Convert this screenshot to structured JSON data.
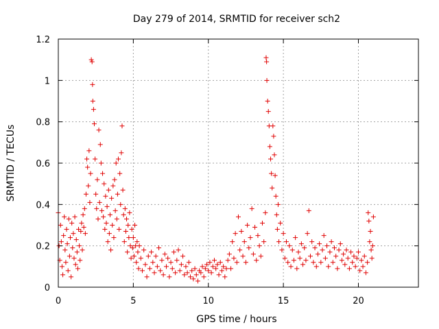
{
  "chart_data": {
    "type": "scatter",
    "title": "Day 279 of 2014, SRMTID for receiver sch2",
    "xlabel": "GPS time / hours",
    "ylabel": "SRMTID / TECUs",
    "xlim": [
      0,
      24
    ],
    "ylim": [
      0,
      1.2
    ],
    "x_ticks": [
      0,
      5,
      10,
      15,
      20
    ],
    "y_ticks": [
      0,
      0.2,
      0.4,
      0.6,
      0.8,
      1,
      1.2
    ],
    "x_tick_labels": [
      "0",
      "5",
      "10",
      "15",
      "20"
    ],
    "y_tick_labels": [
      "0",
      "0.2",
      "0.4",
      "0.6",
      "0.8",
      "1",
      "1.2"
    ],
    "grid": true,
    "marker": "+",
    "color": "#e00000",
    "series": [
      {
        "name": "SRMTID",
        "points": [
          [
            0.0,
            0.36
          ],
          [
            0.05,
            0.2
          ],
          [
            0.1,
            0.13
          ],
          [
            0.15,
            0.3
          ],
          [
            0.2,
            0.22
          ],
          [
            0.25,
            0.1
          ],
          [
            0.3,
            0.06
          ],
          [
            0.35,
            0.25
          ],
          [
            0.4,
            0.34
          ],
          [
            0.45,
            0.18
          ],
          [
            0.5,
            0.12
          ],
          [
            0.55,
            0.28
          ],
          [
            0.6,
            0.21
          ],
          [
            0.65,
            0.08
          ],
          [
            0.7,
            0.33
          ],
          [
            0.75,
            0.15
          ],
          [
            0.8,
            0.24
          ],
          [
            0.85,
            0.05
          ],
          [
            0.9,
            0.31
          ],
          [
            0.95,
            0.19
          ],
          [
            1.0,
            0.26
          ],
          [
            1.05,
            0.14
          ],
          [
            1.1,
            0.34
          ],
          [
            1.15,
            0.11
          ],
          [
            1.2,
            0.23
          ],
          [
            1.25,
            0.17
          ],
          [
            1.3,
            0.09
          ],
          [
            1.35,
            0.28
          ],
          [
            1.4,
            0.2
          ],
          [
            1.45,
            0.13
          ],
          [
            1.5,
            0.27
          ],
          [
            1.55,
            0.31
          ],
          [
            1.6,
            0.18
          ],
          [
            1.65,
            0.35
          ],
          [
            1.7,
            0.29
          ],
          [
            1.75,
            0.38
          ],
          [
            1.8,
            0.26
          ],
          [
            1.85,
            0.45
          ],
          [
            1.9,
            0.62
          ],
          [
            1.95,
            0.58
          ],
          [
            2.0,
            0.49
          ],
          [
            2.05,
            0.66
          ],
          [
            2.1,
            0.41
          ],
          [
            2.15,
            0.55
          ],
          [
            2.2,
            1.1
          ],
          [
            2.25,
            1.09
          ],
          [
            2.28,
            0.98
          ],
          [
            2.3,
            0.9
          ],
          [
            2.35,
            0.86
          ],
          [
            2.4,
            0.79
          ],
          [
            2.45,
            0.62
          ],
          [
            2.5,
            0.45
          ],
          [
            2.55,
            0.38
          ],
          [
            2.6,
            0.52
          ],
          [
            2.65,
            0.33
          ],
          [
            2.7,
            0.76
          ],
          [
            2.75,
            0.41
          ],
          [
            2.8,
            0.69
          ],
          [
            2.85,
            0.6
          ],
          [
            2.9,
            0.37
          ],
          [
            2.95,
            0.55
          ],
          [
            3.0,
            0.34
          ],
          [
            3.05,
            0.5
          ],
          [
            3.1,
            0.28
          ],
          [
            3.15,
            0.44
          ],
          [
            3.2,
            0.31
          ],
          [
            3.25,
            0.39
          ],
          [
            3.3,
            0.22
          ],
          [
            3.35,
            0.47
          ],
          [
            3.4,
            0.26
          ],
          [
            3.45,
            0.35
          ],
          [
            3.5,
            0.18
          ],
          [
            3.55,
            0.43
          ],
          [
            3.6,
            0.3
          ],
          [
            3.65,
            0.49
          ],
          [
            3.7,
            0.24
          ],
          [
            3.75,
            0.52
          ],
          [
            3.8,
            0.37
          ],
          [
            3.85,
            0.6
          ],
          [
            3.9,
            0.33
          ],
          [
            3.95,
            0.45
          ],
          [
            4.0,
            0.62
          ],
          [
            4.05,
            0.28
          ],
          [
            4.1,
            0.55
          ],
          [
            4.15,
            0.4
          ],
          [
            4.2,
            0.65
          ],
          [
            4.25,
            0.78
          ],
          [
            4.3,
            0.47
          ],
          [
            4.35,
            0.35
          ],
          [
            4.4,
            0.22
          ],
          [
            4.45,
            0.38
          ],
          [
            4.5,
            0.27
          ],
          [
            4.55,
            0.33
          ],
          [
            4.6,
            0.17
          ],
          [
            4.65,
            0.3
          ],
          [
            4.7,
            0.24
          ],
          [
            4.75,
            0.36
          ],
          [
            4.8,
            0.2
          ],
          [
            4.85,
            0.14
          ],
          [
            4.9,
            0.28
          ],
          [
            4.95,
            0.19
          ],
          [
            5.0,
            0.24
          ],
          [
            5.05,
            0.15
          ],
          [
            5.1,
            0.3
          ],
          [
            5.15,
            0.2
          ],
          [
            5.2,
            0.12
          ],
          [
            5.25,
            0.22
          ],
          [
            5.3,
            0.17
          ],
          [
            5.35,
            0.09
          ],
          [
            5.4,
            0.2
          ],
          [
            5.5,
            0.14
          ],
          [
            5.6,
            0.08
          ],
          [
            5.7,
            0.18
          ],
          [
            5.8,
            0.11
          ],
          [
            5.9,
            0.05
          ],
          [
            6.0,
            0.15
          ],
          [
            6.1,
            0.09
          ],
          [
            6.2,
            0.17
          ],
          [
            6.3,
            0.12
          ],
          [
            6.4,
            0.07
          ],
          [
            6.5,
            0.15
          ],
          [
            6.6,
            0.1
          ],
          [
            6.7,
            0.19
          ],
          [
            6.8,
            0.08
          ],
          [
            6.9,
            0.13
          ],
          [
            7.0,
            0.06
          ],
          [
            7.1,
            0.16
          ],
          [
            7.2,
            0.1
          ],
          [
            7.3,
            0.14
          ],
          [
            7.4,
            0.05
          ],
          [
            7.5,
            0.12
          ],
          [
            7.6,
            0.09
          ],
          [
            7.7,
            0.17
          ],
          [
            7.8,
            0.07
          ],
          [
            7.9,
            0.13
          ],
          [
            8.0,
            0.18
          ],
          [
            8.1,
            0.08
          ],
          [
            8.2,
            0.11
          ],
          [
            8.3,
            0.15
          ],
          [
            8.4,
            0.06
          ],
          [
            8.5,
            0.1
          ],
          [
            8.6,
            0.07
          ],
          [
            8.7,
            0.12
          ],
          [
            8.8,
            0.05
          ],
          [
            8.9,
            0.08
          ],
          [
            9.0,
            0.04
          ],
          [
            9.1,
            0.09
          ],
          [
            9.2,
            0.06
          ],
          [
            9.3,
            0.03
          ],
          [
            9.4,
            0.08
          ],
          [
            9.5,
            0.07
          ],
          [
            9.6,
            0.1
          ],
          [
            9.7,
            0.05
          ],
          [
            9.8,
            0.09
          ],
          [
            9.9,
            0.11
          ],
          [
            10.0,
            0.08
          ],
          [
            10.1,
            0.12
          ],
          [
            10.2,
            0.07
          ],
          [
            10.3,
            0.1
          ],
          [
            10.4,
            0.13
          ],
          [
            10.5,
            0.09
          ],
          [
            10.6,
            0.11
          ],
          [
            10.7,
            0.06
          ],
          [
            10.8,
            0.12
          ],
          [
            10.9,
            0.08
          ],
          [
            11.0,
            0.1
          ],
          [
            11.1,
            0.05
          ],
          [
            11.2,
            0.09
          ],
          [
            11.3,
            0.13
          ],
          [
            11.4,
            0.16
          ],
          [
            11.5,
            0.09
          ],
          [
            11.6,
            0.22
          ],
          [
            11.7,
            0.14
          ],
          [
            11.8,
            0.26
          ],
          [
            11.9,
            0.12
          ],
          [
            12.0,
            0.34
          ],
          [
            12.1,
            0.18
          ],
          [
            12.2,
            0.27
          ],
          [
            12.3,
            0.15
          ],
          [
            12.4,
            0.22
          ],
          [
            12.5,
            0.12
          ],
          [
            12.6,
            0.3
          ],
          [
            12.7,
            0.19
          ],
          [
            12.8,
            0.24
          ],
          [
            12.9,
            0.38
          ],
          [
            13.0,
            0.16
          ],
          [
            13.1,
            0.29
          ],
          [
            13.2,
            0.13
          ],
          [
            13.3,
            0.25
          ],
          [
            13.4,
            0.2
          ],
          [
            13.5,
            0.15
          ],
          [
            13.6,
            0.31
          ],
          [
            13.7,
            0.22
          ],
          [
            13.8,
            0.36
          ],
          [
            13.85,
            1.11
          ],
          [
            13.88,
            1.09
          ],
          [
            13.9,
            1.0
          ],
          [
            13.95,
            0.9
          ],
          [
            14.0,
            0.85
          ],
          [
            14.05,
            0.78
          ],
          [
            14.1,
            0.68
          ],
          [
            14.15,
            0.62
          ],
          [
            14.2,
            0.55
          ],
          [
            14.25,
            0.48
          ],
          [
            14.3,
            0.78
          ],
          [
            14.35,
            0.73
          ],
          [
            14.4,
            0.64
          ],
          [
            14.45,
            0.54
          ],
          [
            14.5,
            0.44
          ],
          [
            14.55,
            0.35
          ],
          [
            14.6,
            0.28
          ],
          [
            14.65,
            0.4
          ],
          [
            14.7,
            0.22
          ],
          [
            14.8,
            0.31
          ],
          [
            14.9,
            0.18
          ],
          [
            15.0,
            0.26
          ],
          [
            15.1,
            0.14
          ],
          [
            15.2,
            0.22
          ],
          [
            15.3,
            0.12
          ],
          [
            15.4,
            0.2
          ],
          [
            15.5,
            0.1
          ],
          [
            15.6,
            0.18
          ],
          [
            15.7,
            0.13
          ],
          [
            15.8,
            0.24
          ],
          [
            15.9,
            0.09
          ],
          [
            16.0,
            0.17
          ],
          [
            16.1,
            0.14
          ],
          [
            16.2,
            0.21
          ],
          [
            16.3,
            0.11
          ],
          [
            16.4,
            0.19
          ],
          [
            16.5,
            0.13
          ],
          [
            16.6,
            0.26
          ],
          [
            16.7,
            0.37
          ],
          [
            16.8,
            0.15
          ],
          [
            16.9,
            0.22
          ],
          [
            17.0,
            0.12
          ],
          [
            17.1,
            0.19
          ],
          [
            17.2,
            0.1
          ],
          [
            17.3,
            0.16
          ],
          [
            17.4,
            0.21
          ],
          [
            17.5,
            0.12
          ],
          [
            17.6,
            0.18
          ],
          [
            17.7,
            0.25
          ],
          [
            17.8,
            0.14
          ],
          [
            17.9,
            0.2
          ],
          [
            18.0,
            0.1
          ],
          [
            18.1,
            0.17
          ],
          [
            18.2,
            0.22
          ],
          [
            18.3,
            0.12
          ],
          [
            18.4,
            0.19
          ],
          [
            18.5,
            0.15
          ],
          [
            18.6,
            0.09
          ],
          [
            18.7,
            0.18
          ],
          [
            18.8,
            0.21
          ],
          [
            18.9,
            0.13
          ],
          [
            19.0,
            0.16
          ],
          [
            19.1,
            0.11
          ],
          [
            19.2,
            0.18
          ],
          [
            19.3,
            0.14
          ],
          [
            19.4,
            0.09
          ],
          [
            19.5,
            0.17
          ],
          [
            19.6,
            0.12
          ],
          [
            19.7,
            0.15
          ],
          [
            19.8,
            0.1
          ],
          [
            19.9,
            0.14
          ],
          [
            20.0,
            0.17
          ],
          [
            20.1,
            0.08
          ],
          [
            20.2,
            0.13
          ],
          [
            20.3,
            0.1
          ],
          [
            20.4,
            0.15
          ],
          [
            20.5,
            0.07
          ],
          [
            20.6,
            0.12
          ],
          [
            20.65,
            0.36
          ],
          [
            20.7,
            0.32
          ],
          [
            20.75,
            0.22
          ],
          [
            20.8,
            0.27
          ],
          [
            20.85,
            0.18
          ],
          [
            20.9,
            0.14
          ],
          [
            20.95,
            0.2
          ],
          [
            21.0,
            0.34
          ]
        ]
      }
    ]
  }
}
